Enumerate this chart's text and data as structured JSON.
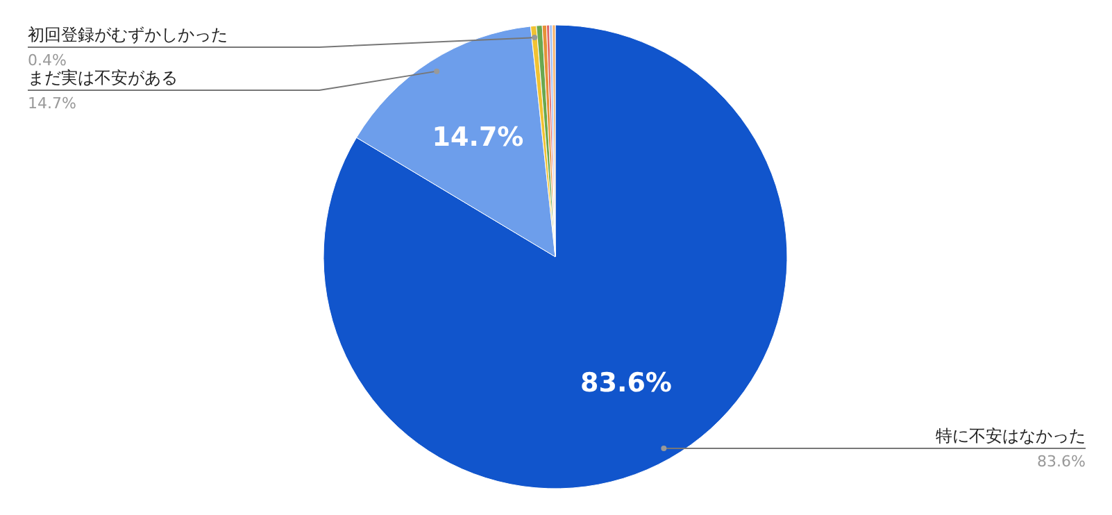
{
  "chart_data": {
    "type": "pie",
    "categories": [
      "特に不安はなかった",
      "まだ実は不安がある",
      "初回登録がむずかしかった",
      null,
      null,
      null,
      null,
      null
    ],
    "values": [
      83.6,
      14.7,
      0.4,
      0.4,
      0.3,
      0.2,
      0.2,
      0.2
    ],
    "colors": [
      "#1155cc",
      "#6d9eeb",
      "#f1c232",
      "#6aa84f",
      "#e69138",
      "#e06666",
      "#a4c2f4",
      "#f6b26b"
    ],
    "value_labels": [
      "83.6%",
      "14.7%",
      null,
      null,
      null,
      null,
      null,
      null
    ],
    "annotations": [
      {
        "text": "83.6%",
        "x": "特に不安はなかった"
      },
      {
        "text": "14.7%",
        "x": "まだ実は不安がある"
      },
      {
        "text": "0.4%",
        "x": "初回登録がむずかしかった"
      }
    ],
    "legend": false
  }
}
